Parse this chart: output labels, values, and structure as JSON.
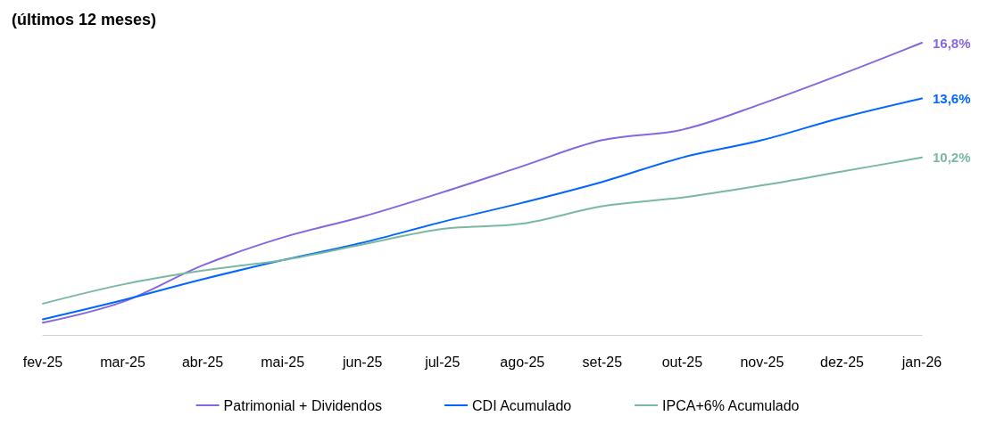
{
  "chart_data": {
    "type": "line",
    "title": "(últimos 12 meses)",
    "categories": [
      "fev-25",
      "mar-25",
      "abr-25",
      "mai-25",
      "jun-25",
      "jul-25",
      "ago-25",
      "set-25",
      "out-25",
      "nov-25",
      "dez-25",
      "jan-26"
    ],
    "series": [
      {
        "name": "Patrimonial + Dividendos",
        "color": "#8566e0",
        "values": [
          0.7,
          1.9,
          4.0,
          5.6,
          6.8,
          8.2,
          9.7,
          11.2,
          11.8,
          13.3,
          15.0,
          16.8
        ],
        "value_labels": [
          null,
          null,
          null,
          null,
          null,
          null,
          null,
          null,
          null,
          null,
          null,
          "16,8%"
        ]
      },
      {
        "name": "CDI Acumulado",
        "color": "#0066ff",
        "values": [
          0.9,
          2.0,
          3.2,
          4.3,
          5.3,
          6.5,
          7.6,
          8.8,
          10.2,
          11.2,
          12.5,
          13.6
        ],
        "value_labels": [
          null,
          null,
          null,
          null,
          null,
          null,
          null,
          null,
          null,
          null,
          null,
          "13,6%"
        ]
      },
      {
        "name": "IPCA+6% Acumulado",
        "color": "#7ab8a0",
        "values": [
          1.8,
          2.9,
          3.7,
          4.3,
          5.2,
          6.1,
          6.4,
          7.4,
          7.9,
          8.6,
          9.4,
          10.2
        ],
        "value_labels": [
          null,
          null,
          null,
          null,
          null,
          null,
          null,
          null,
          null,
          null,
          null,
          "10,2%"
        ]
      }
    ],
    "legend": "bottom",
    "grid": false,
    "marker": "none"
  }
}
